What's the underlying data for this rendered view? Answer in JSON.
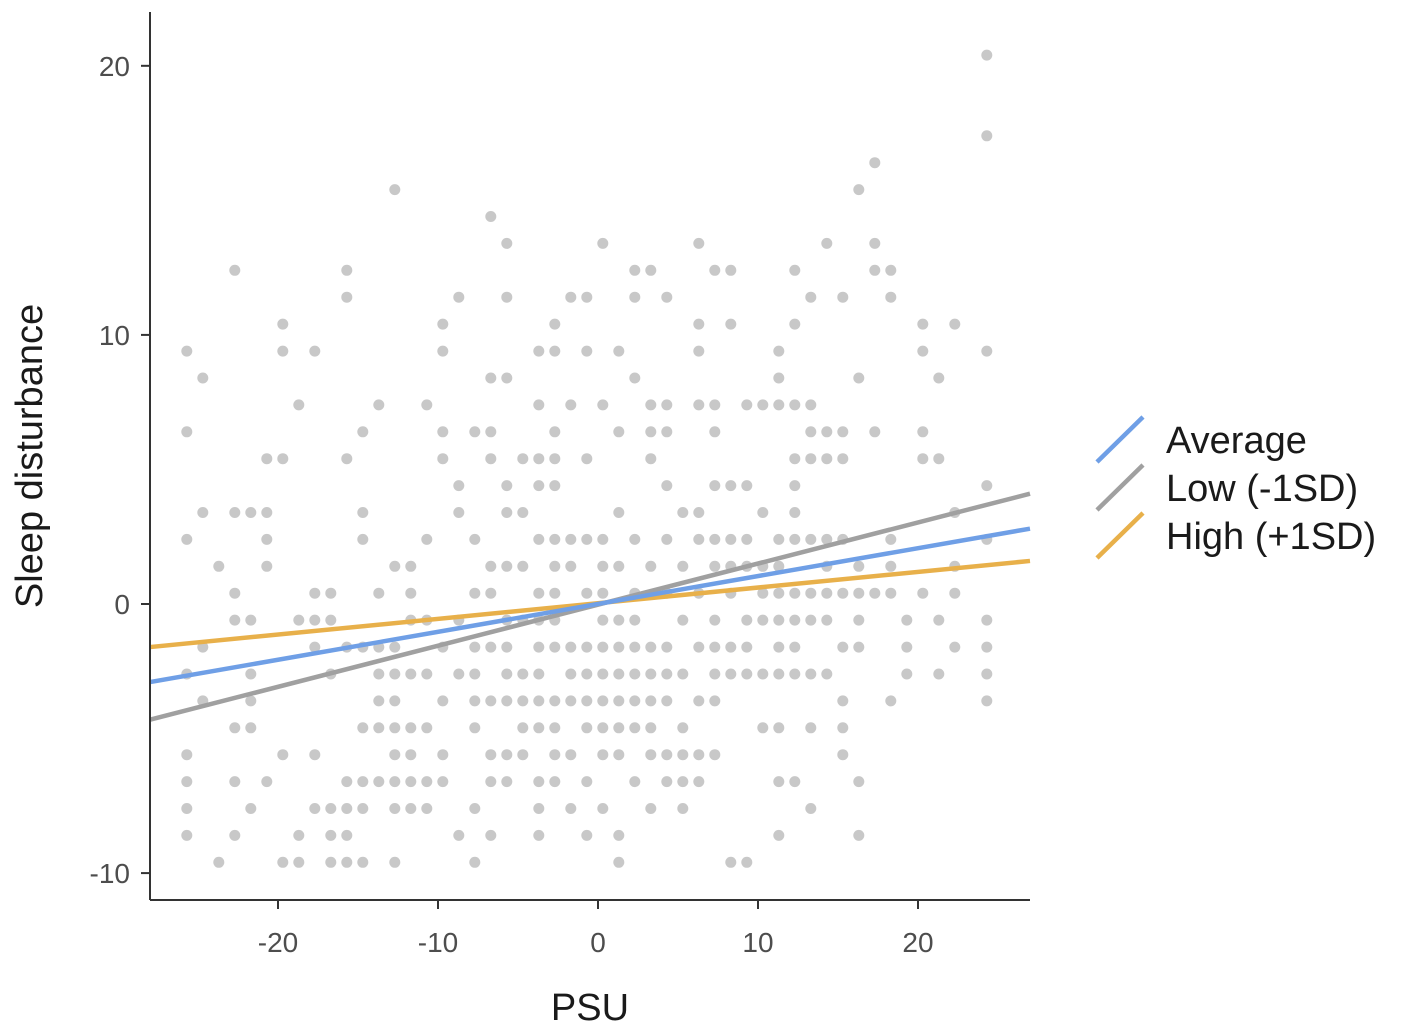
{
  "chart_data": {
    "type": "scatter",
    "title": "",
    "xlabel": "PSU",
    "ylabel": "Sleep disturbance",
    "xlim": [
      -28,
      27
    ],
    "ylim": [
      -11,
      22
    ],
    "x_ticks": [
      -20,
      -10,
      0,
      10,
      20
    ],
    "x_tick_labels": [
      "-20",
      "-10",
      "0",
      "10",
      "20"
    ],
    "y_ticks": [
      -10,
      0,
      10,
      20
    ],
    "y_tick_labels": [
      "-10",
      "0",
      "10",
      "20"
    ],
    "grid": false,
    "legend_position": "right",
    "point_color": "#a6a6a6",
    "lines": [
      {
        "name": "Average",
        "color": "#6f9fe6",
        "x": [
          -28,
          27
        ],
        "y": [
          -2.9,
          2.8
        ]
      },
      {
        "name": "Low (-1SD)",
        "color": "#a0a0a0",
        "x": [
          -28,
          27
        ],
        "y": [
          -4.3,
          4.1
        ]
      },
      {
        "name": "High (+1SD)",
        "color": "#e8b04a",
        "x": [
          -28,
          27
        ],
        "y": [
          -1.6,
          1.6
        ]
      }
    ],
    "points": [
      [
        -25.7,
        9.4
      ],
      [
        -25.7,
        6.4
      ],
      [
        -25.7,
        2.4
      ],
      [
        -25.7,
        -2.6
      ],
      [
        -25.7,
        -5.6
      ],
      [
        -25.7,
        -6.6
      ],
      [
        -25.7,
        -7.6
      ],
      [
        -25.7,
        -8.6
      ],
      [
        -24.7,
        8.4
      ],
      [
        -24.7,
        3.4
      ],
      [
        -24.7,
        -1.6
      ],
      [
        -24.7,
        -3.6
      ],
      [
        -23.7,
        1.4
      ],
      [
        -23.7,
        -9.6
      ],
      [
        -22.7,
        12.4
      ],
      [
        -22.7,
        3.4
      ],
      [
        -22.7,
        0.4
      ],
      [
        -22.7,
        -0.6
      ],
      [
        -22.7,
        -4.6
      ],
      [
        -22.7,
        -6.6
      ],
      [
        -22.7,
        -8.6
      ],
      [
        -21.7,
        3.4
      ],
      [
        -21.7,
        -0.6
      ],
      [
        -21.7,
        -2.6
      ],
      [
        -21.7,
        -3.6
      ],
      [
        -21.7,
        -4.6
      ],
      [
        -21.7,
        -7.6
      ],
      [
        -20.7,
        5.4
      ],
      [
        -20.7,
        3.4
      ],
      [
        -20.7,
        2.4
      ],
      [
        -20.7,
        1.4
      ],
      [
        -20.7,
        -6.6
      ],
      [
        -19.7,
        10.4
      ],
      [
        -19.7,
        9.4
      ],
      [
        -19.7,
        5.4
      ],
      [
        -19.7,
        -5.6
      ],
      [
        -19.7,
        -9.6
      ],
      [
        -18.7,
        7.4
      ],
      [
        -18.7,
        -0.6
      ],
      [
        -18.7,
        -8.6
      ],
      [
        -18.7,
        -9.6
      ],
      [
        -17.7,
        9.4
      ],
      [
        -17.7,
        0.4
      ],
      [
        -17.7,
        -0.6
      ],
      [
        -17.7,
        -1.6
      ],
      [
        -17.7,
        -5.6
      ],
      [
        -17.7,
        -7.6
      ],
      [
        -16.7,
        0.4
      ],
      [
        -16.7,
        -0.6
      ],
      [
        -16.7,
        -2.6
      ],
      [
        -16.7,
        -7.6
      ],
      [
        -16.7,
        -8.6
      ],
      [
        -16.7,
        -9.6
      ],
      [
        -15.7,
        12.4
      ],
      [
        -15.7,
        11.4
      ],
      [
        -15.7,
        5.4
      ],
      [
        -15.7,
        -1.6
      ],
      [
        -15.7,
        -6.6
      ],
      [
        -15.7,
        -7.6
      ],
      [
        -15.7,
        -8.6
      ],
      [
        -15.7,
        -9.6
      ],
      [
        -14.7,
        6.4
      ],
      [
        -14.7,
        3.4
      ],
      [
        -14.7,
        2.4
      ],
      [
        -14.7,
        -1.6
      ],
      [
        -14.7,
        -4.6
      ],
      [
        -14.7,
        -6.6
      ],
      [
        -14.7,
        -7.6
      ],
      [
        -14.7,
        -9.6
      ],
      [
        -13.7,
        7.4
      ],
      [
        -13.7,
        0.4
      ],
      [
        -13.7,
        -1.6
      ],
      [
        -13.7,
        -2.6
      ],
      [
        -13.7,
        -3.6
      ],
      [
        -13.7,
        -4.6
      ],
      [
        -13.7,
        -6.6
      ],
      [
        -12.7,
        15.4
      ],
      [
        -12.7,
        1.4
      ],
      [
        -12.7,
        -1.6
      ],
      [
        -12.7,
        -2.6
      ],
      [
        -12.7,
        -3.6
      ],
      [
        -12.7,
        -4.6
      ],
      [
        -12.7,
        -5.6
      ],
      [
        -12.7,
        -6.6
      ],
      [
        -12.7,
        -7.6
      ],
      [
        -12.7,
        -9.6
      ],
      [
        -11.7,
        1.4
      ],
      [
        -11.7,
        0.4
      ],
      [
        -11.7,
        -0.6
      ],
      [
        -11.7,
        -2.6
      ],
      [
        -11.7,
        -4.6
      ],
      [
        -11.7,
        -5.6
      ],
      [
        -11.7,
        -6.6
      ],
      [
        -11.7,
        -7.6
      ],
      [
        -10.7,
        7.4
      ],
      [
        -10.7,
        2.4
      ],
      [
        -10.7,
        -0.6
      ],
      [
        -10.7,
        -2.6
      ],
      [
        -10.7,
        -4.6
      ],
      [
        -10.7,
        -6.6
      ],
      [
        -10.7,
        -7.6
      ],
      [
        -9.7,
        10.4
      ],
      [
        -9.7,
        9.4
      ],
      [
        -9.7,
        6.4
      ],
      [
        -9.7,
        5.4
      ],
      [
        -9.7,
        -1.6
      ],
      [
        -9.7,
        -3.6
      ],
      [
        -9.7,
        -5.6
      ],
      [
        -9.7,
        -6.6
      ],
      [
        -8.7,
        11.4
      ],
      [
        -8.7,
        4.4
      ],
      [
        -8.7,
        3.4
      ],
      [
        -8.7,
        -0.6
      ],
      [
        -8.7,
        -2.6
      ],
      [
        -8.7,
        -8.6
      ],
      [
        -7.7,
        6.4
      ],
      [
        -7.7,
        2.4
      ],
      [
        -7.7,
        0.4
      ],
      [
        -7.7,
        -1.6
      ],
      [
        -7.7,
        -2.6
      ],
      [
        -7.7,
        -3.6
      ],
      [
        -7.7,
        -4.6
      ],
      [
        -7.7,
        -7.6
      ],
      [
        -7.7,
        -9.6
      ],
      [
        -6.7,
        14.4
      ],
      [
        -6.7,
        8.4
      ],
      [
        -6.7,
        6.4
      ],
      [
        -6.7,
        5.4
      ],
      [
        -6.7,
        1.4
      ],
      [
        -6.7,
        0.4
      ],
      [
        -6.7,
        -1.6
      ],
      [
        -6.7,
        -3.6
      ],
      [
        -6.7,
        -5.6
      ],
      [
        -6.7,
        -6.6
      ],
      [
        -6.7,
        -8.6
      ],
      [
        -5.7,
        13.4
      ],
      [
        -5.7,
        11.4
      ],
      [
        -5.7,
        8.4
      ],
      [
        -5.7,
        4.4
      ],
      [
        -5.7,
        3.4
      ],
      [
        -5.7,
        1.4
      ],
      [
        -5.7,
        -0.6
      ],
      [
        -5.7,
        -1.6
      ],
      [
        -5.7,
        -2.6
      ],
      [
        -5.7,
        -3.6
      ],
      [
        -5.7,
        -5.6
      ],
      [
        -5.7,
        -6.6
      ],
      [
        -4.7,
        5.4
      ],
      [
        -4.7,
        3.4
      ],
      [
        -4.7,
        1.4
      ],
      [
        -4.7,
        -0.6
      ],
      [
        -4.7,
        -2.6
      ],
      [
        -4.7,
        -3.6
      ],
      [
        -4.7,
        -4.6
      ],
      [
        -4.7,
        -5.6
      ],
      [
        -3.7,
        9.4
      ],
      [
        -3.7,
        7.4
      ],
      [
        -3.7,
        5.4
      ],
      [
        -3.7,
        4.4
      ],
      [
        -3.7,
        2.4
      ],
      [
        -3.7,
        0.4
      ],
      [
        -3.7,
        -0.6
      ],
      [
        -3.7,
        -1.6
      ],
      [
        -3.7,
        -2.6
      ],
      [
        -3.7,
        -3.6
      ],
      [
        -3.7,
        -4.6
      ],
      [
        -3.7,
        -6.6
      ],
      [
        -3.7,
        -7.6
      ],
      [
        -3.7,
        -8.6
      ],
      [
        -2.7,
        10.4
      ],
      [
        -2.7,
        9.4
      ],
      [
        -2.7,
        6.4
      ],
      [
        -2.7,
        5.4
      ],
      [
        -2.7,
        4.4
      ],
      [
        -2.7,
        2.4
      ],
      [
        -2.7,
        1.4
      ],
      [
        -2.7,
        0.4
      ],
      [
        -2.7,
        -0.6
      ],
      [
        -2.7,
        -1.6
      ],
      [
        -2.7,
        -3.6
      ],
      [
        -2.7,
        -4.6
      ],
      [
        -2.7,
        -5.6
      ],
      [
        -2.7,
        -6.6
      ],
      [
        -1.7,
        11.4
      ],
      [
        -1.7,
        7.4
      ],
      [
        -1.7,
        2.4
      ],
      [
        -1.7,
        1.4
      ],
      [
        -1.7,
        -1.6
      ],
      [
        -1.7,
        -2.6
      ],
      [
        -1.7,
        -3.6
      ],
      [
        -1.7,
        -5.6
      ],
      [
        -1.7,
        -7.6
      ],
      [
        -0.7,
        11.4
      ],
      [
        -0.7,
        9.4
      ],
      [
        -0.7,
        5.4
      ],
      [
        -0.7,
        2.4
      ],
      [
        -0.7,
        0.4
      ],
      [
        -0.7,
        -1.6
      ],
      [
        -0.7,
        -2.6
      ],
      [
        -0.7,
        -3.6
      ],
      [
        -0.7,
        -4.6
      ],
      [
        -0.7,
        -6.6
      ],
      [
        -0.7,
        -8.6
      ],
      [
        0.3,
        13.4
      ],
      [
        0.3,
        7.4
      ],
      [
        0.3,
        2.4
      ],
      [
        0.3,
        1.4
      ],
      [
        0.3,
        0.4
      ],
      [
        0.3,
        -0.6
      ],
      [
        0.3,
        -1.6
      ],
      [
        0.3,
        -2.6
      ],
      [
        0.3,
        -3.6
      ],
      [
        0.3,
        -4.6
      ],
      [
        0.3,
        -5.6
      ],
      [
        0.3,
        -7.6
      ],
      [
        1.3,
        9.4
      ],
      [
        1.3,
        6.4
      ],
      [
        1.3,
        3.4
      ],
      [
        1.3,
        1.4
      ],
      [
        1.3,
        -0.6
      ],
      [
        1.3,
        -1.6
      ],
      [
        1.3,
        -2.6
      ],
      [
        1.3,
        -3.6
      ],
      [
        1.3,
        -4.6
      ],
      [
        1.3,
        -5.6
      ],
      [
        1.3,
        -8.6
      ],
      [
        1.3,
        -9.6
      ],
      [
        2.3,
        12.4
      ],
      [
        2.3,
        11.4
      ],
      [
        2.3,
        8.4
      ],
      [
        2.3,
        2.4
      ],
      [
        2.3,
        0.4
      ],
      [
        2.3,
        -0.6
      ],
      [
        2.3,
        -1.6
      ],
      [
        2.3,
        -2.6
      ],
      [
        2.3,
        -3.6
      ],
      [
        2.3,
        -4.6
      ],
      [
        2.3,
        -6.6
      ],
      [
        3.3,
        12.4
      ],
      [
        3.3,
        7.4
      ],
      [
        3.3,
        6.4
      ],
      [
        3.3,
        5.4
      ],
      [
        3.3,
        1.4
      ],
      [
        3.3,
        -1.6
      ],
      [
        3.3,
        -2.6
      ],
      [
        3.3,
        -3.6
      ],
      [
        3.3,
        -4.6
      ],
      [
        3.3,
        -5.6
      ],
      [
        3.3,
        -7.6
      ],
      [
        4.3,
        11.4
      ],
      [
        4.3,
        7.4
      ],
      [
        4.3,
        6.4
      ],
      [
        4.3,
        4.4
      ],
      [
        4.3,
        2.4
      ],
      [
        4.3,
        0.4
      ],
      [
        4.3,
        -1.6
      ],
      [
        4.3,
        -2.6
      ],
      [
        4.3,
        -3.6
      ],
      [
        4.3,
        -5.6
      ],
      [
        4.3,
        -6.6
      ],
      [
        5.3,
        3.4
      ],
      [
        5.3,
        1.4
      ],
      [
        5.3,
        -0.6
      ],
      [
        5.3,
        -2.6
      ],
      [
        5.3,
        -4.6
      ],
      [
        5.3,
        -5.6
      ],
      [
        5.3,
        -6.6
      ],
      [
        5.3,
        -7.6
      ],
      [
        6.3,
        13.4
      ],
      [
        6.3,
        10.4
      ],
      [
        6.3,
        9.4
      ],
      [
        6.3,
        7.4
      ],
      [
        6.3,
        3.4
      ],
      [
        6.3,
        2.4
      ],
      [
        6.3,
        0.4
      ],
      [
        6.3,
        -1.6
      ],
      [
        6.3,
        -3.6
      ],
      [
        6.3,
        -5.6
      ],
      [
        6.3,
        -6.6
      ],
      [
        7.3,
        12.4
      ],
      [
        7.3,
        7.4
      ],
      [
        7.3,
        6.4
      ],
      [
        7.3,
        4.4
      ],
      [
        7.3,
        2.4
      ],
      [
        7.3,
        1.4
      ],
      [
        7.3,
        -0.6
      ],
      [
        7.3,
        -1.6
      ],
      [
        7.3,
        -2.6
      ],
      [
        7.3,
        -3.6
      ],
      [
        7.3,
        -5.6
      ],
      [
        8.3,
        12.4
      ],
      [
        8.3,
        10.4
      ],
      [
        8.3,
        4.4
      ],
      [
        8.3,
        2.4
      ],
      [
        8.3,
        1.4
      ],
      [
        8.3,
        0.4
      ],
      [
        8.3,
        -1.6
      ],
      [
        8.3,
        -2.6
      ],
      [
        8.3,
        -9.6
      ],
      [
        9.3,
        7.4
      ],
      [
        9.3,
        4.4
      ],
      [
        9.3,
        2.4
      ],
      [
        9.3,
        1.4
      ],
      [
        9.3,
        -0.6
      ],
      [
        9.3,
        -1.6
      ],
      [
        9.3,
        -2.6
      ],
      [
        9.3,
        -9.6
      ],
      [
        10.3,
        7.4
      ],
      [
        10.3,
        3.4
      ],
      [
        10.3,
        1.4
      ],
      [
        10.3,
        0.4
      ],
      [
        10.3,
        -0.6
      ],
      [
        10.3,
        -2.6
      ],
      [
        10.3,
        -4.6
      ],
      [
        11.3,
        9.4
      ],
      [
        11.3,
        8.4
      ],
      [
        11.3,
        7.4
      ],
      [
        11.3,
        2.4
      ],
      [
        11.3,
        1.4
      ],
      [
        11.3,
        0.4
      ],
      [
        11.3,
        -0.6
      ],
      [
        11.3,
        -1.6
      ],
      [
        11.3,
        -2.6
      ],
      [
        11.3,
        -4.6
      ],
      [
        11.3,
        -6.6
      ],
      [
        11.3,
        -8.6
      ],
      [
        12.3,
        12.4
      ],
      [
        12.3,
        10.4
      ],
      [
        12.3,
        7.4
      ],
      [
        12.3,
        5.4
      ],
      [
        12.3,
        4.4
      ],
      [
        12.3,
        3.4
      ],
      [
        12.3,
        2.4
      ],
      [
        12.3,
        0.4
      ],
      [
        12.3,
        -0.6
      ],
      [
        12.3,
        -1.6
      ],
      [
        12.3,
        -2.6
      ],
      [
        12.3,
        -6.6
      ],
      [
        13.3,
        11.4
      ],
      [
        13.3,
        7.4
      ],
      [
        13.3,
        6.4
      ],
      [
        13.3,
        5.4
      ],
      [
        13.3,
        2.4
      ],
      [
        13.3,
        0.4
      ],
      [
        13.3,
        -0.6
      ],
      [
        13.3,
        -2.6
      ],
      [
        13.3,
        -4.6
      ],
      [
        13.3,
        -7.6
      ],
      [
        14.3,
        13.4
      ],
      [
        14.3,
        6.4
      ],
      [
        14.3,
        5.4
      ],
      [
        14.3,
        2.4
      ],
      [
        14.3,
        1.4
      ],
      [
        14.3,
        0.4
      ],
      [
        14.3,
        -0.6
      ],
      [
        14.3,
        -2.6
      ],
      [
        15.3,
        11.4
      ],
      [
        15.3,
        6.4
      ],
      [
        15.3,
        5.4
      ],
      [
        15.3,
        2.4
      ],
      [
        15.3,
        0.4
      ],
      [
        15.3,
        -1.6
      ],
      [
        15.3,
        -3.6
      ],
      [
        15.3,
        -4.6
      ],
      [
        15.3,
        -5.6
      ],
      [
        16.3,
        15.4
      ],
      [
        16.3,
        8.4
      ],
      [
        16.3,
        1.4
      ],
      [
        16.3,
        0.4
      ],
      [
        16.3,
        -0.6
      ],
      [
        16.3,
        -1.6
      ],
      [
        16.3,
        -6.6
      ],
      [
        16.3,
        -8.6
      ],
      [
        17.3,
        16.4
      ],
      [
        17.3,
        13.4
      ],
      [
        17.3,
        12.4
      ],
      [
        17.3,
        6.4
      ],
      [
        17.3,
        0.4
      ],
      [
        18.3,
        12.4
      ],
      [
        18.3,
        11.4
      ],
      [
        18.3,
        2.4
      ],
      [
        18.3,
        1.4
      ],
      [
        18.3,
        0.4
      ],
      [
        18.3,
        -3.6
      ],
      [
        19.3,
        -0.6
      ],
      [
        19.3,
        -1.6
      ],
      [
        19.3,
        -2.6
      ],
      [
        20.3,
        10.4
      ],
      [
        20.3,
        9.4
      ],
      [
        20.3,
        6.4
      ],
      [
        20.3,
        5.4
      ],
      [
        20.3,
        0.4
      ],
      [
        21.3,
        8.4
      ],
      [
        21.3,
        5.4
      ],
      [
        21.3,
        -0.6
      ],
      [
        21.3,
        -2.6
      ],
      [
        22.3,
        10.4
      ],
      [
        22.3,
        3.4
      ],
      [
        22.3,
        1.4
      ],
      [
        22.3,
        0.4
      ],
      [
        22.3,
        -1.6
      ],
      [
        24.3,
        20.4
      ],
      [
        24.3,
        17.4
      ],
      [
        24.3,
        9.4
      ],
      [
        24.3,
        4.4
      ],
      [
        24.3,
        2.4
      ],
      [
        24.3,
        -0.6
      ],
      [
        24.3,
        -1.6
      ],
      [
        24.3,
        -2.6
      ],
      [
        24.3,
        -3.6
      ]
    ]
  }
}
